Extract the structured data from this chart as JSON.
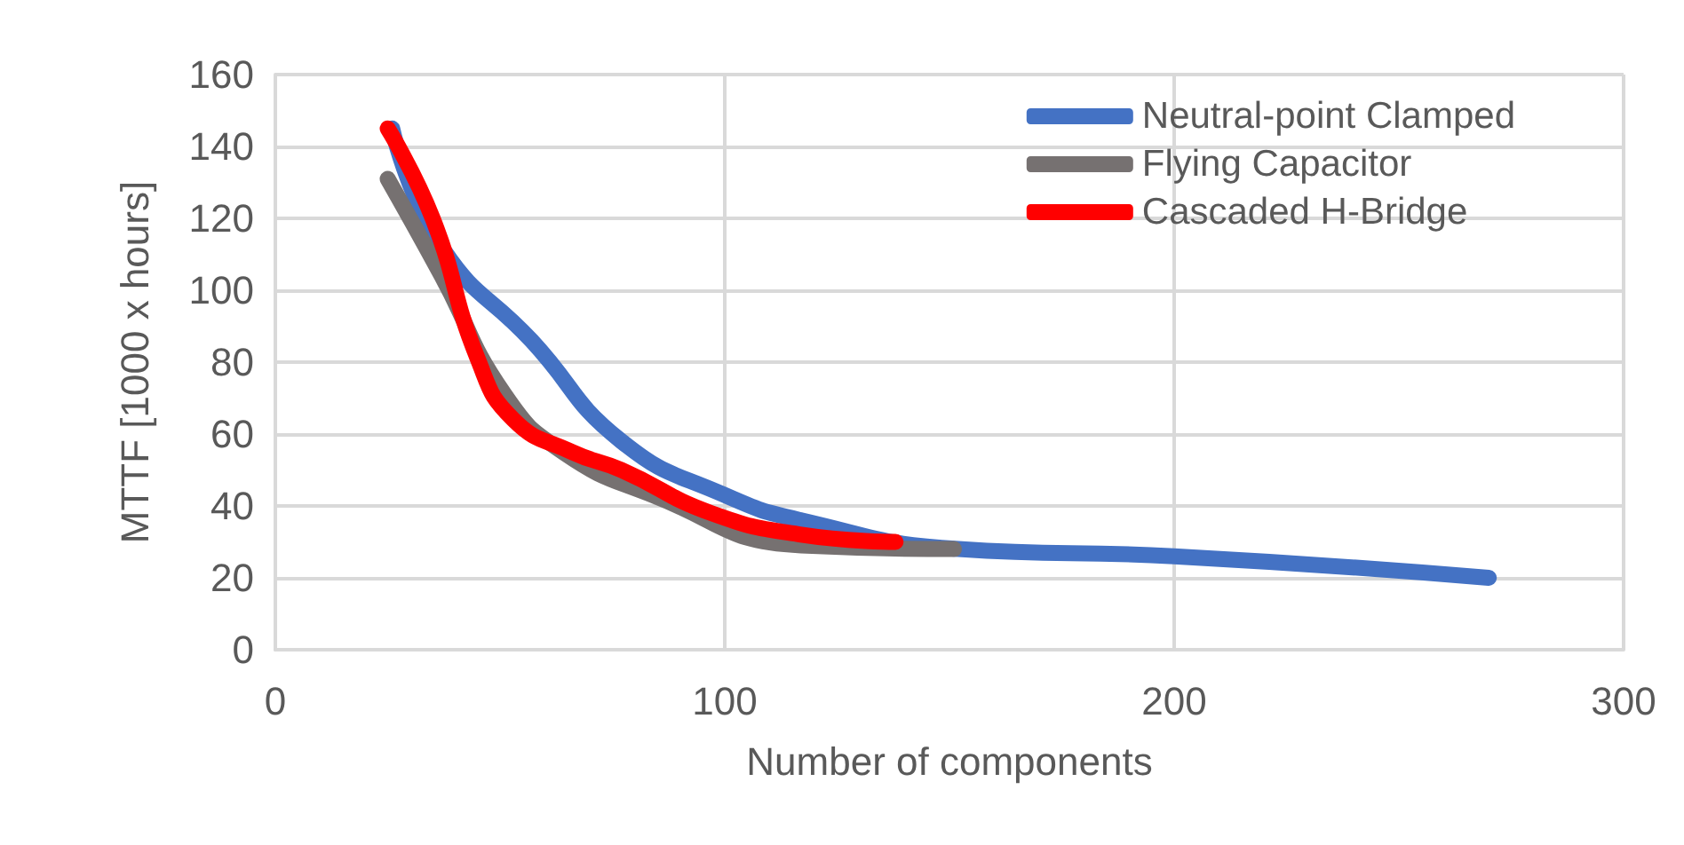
{
  "chart_data": {
    "type": "line",
    "xlabel": "Number of components",
    "ylabel": "MTTF [1000 x hours]",
    "xlim": [
      0,
      300
    ],
    "xticks": [
      0,
      100,
      200,
      300
    ],
    "ylim": [
      0,
      160
    ],
    "yticks": [
      0,
      20,
      40,
      60,
      80,
      100,
      120,
      140,
      160
    ],
    "grid": true,
    "legend": "top right",
    "marker": "none",
    "line_style": "solid",
    "series": [
      {
        "name": "Neutral-point Clamped",
        "color": "#4472c4",
        "x": [
          26,
          37,
          57,
          77,
          100,
          117,
          152,
          200,
          270
        ],
        "values": [
          145,
          112,
          86,
          58,
          43,
          36,
          28,
          26,
          20
        ]
      },
      {
        "name": "Flying Capacitor",
        "color": "#767171",
        "x": [
          25,
          37,
          51,
          64,
          84,
          117,
          151
        ],
        "values": [
          131,
          104,
          71,
          55,
          43,
          29,
          28
        ]
      },
      {
        "name": "Cascaded H-Bridge",
        "color": "#ff0000",
        "x": [
          25,
          35,
          45,
          53,
          66,
          77,
          97,
          117,
          138
        ],
        "values": [
          145,
          120,
          81,
          64,
          55,
          50,
          38,
          32,
          30
        ]
      }
    ]
  }
}
